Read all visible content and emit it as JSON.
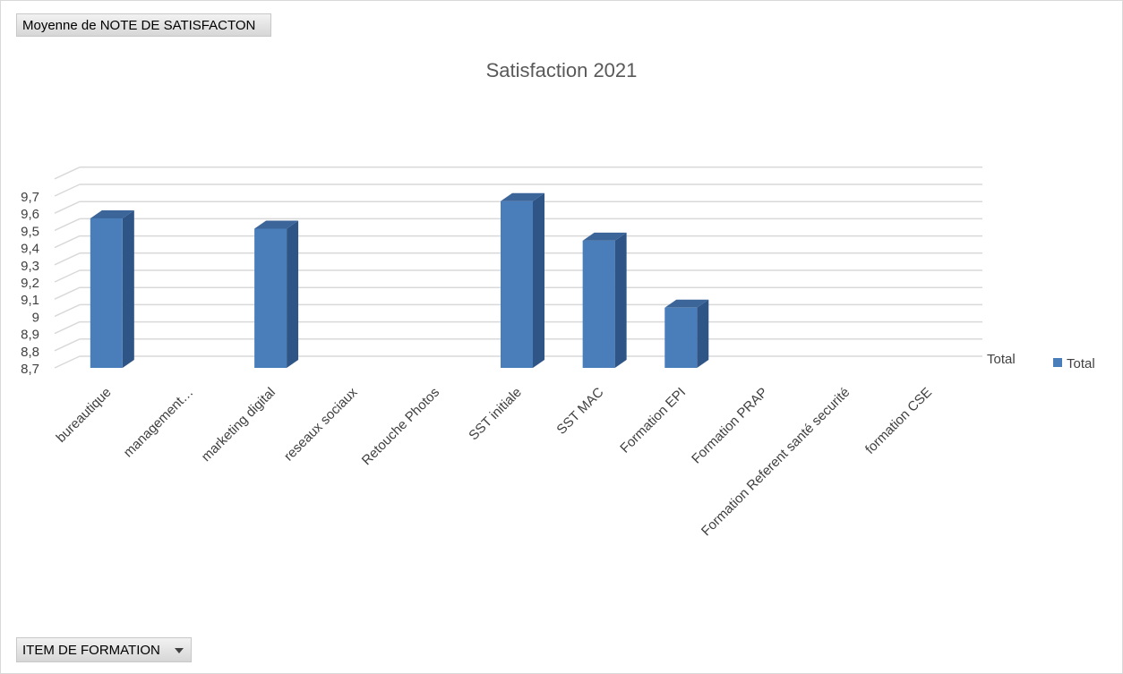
{
  "pivot": {
    "value_field_label": "Moyenne de NOTE DE SATISFACTON",
    "axis_field_label": "ITEM DE FORMATION"
  },
  "chart_data": {
    "type": "bar",
    "title": "Satisfaction 2021",
    "categories": [
      "bureautique",
      "management…",
      "marketing digital",
      "reseaux sociaux",
      "Retouche  Photos",
      "SST initiale",
      "SST MAC",
      "Formation EPI",
      "Formation PRAP",
      "Formation Referent santé securité",
      "formation CSE"
    ],
    "series": [
      {
        "name": "Total",
        "values": [
          9.57,
          null,
          9.51,
          null,
          null,
          9.67,
          9.44,
          9.05,
          null,
          null,
          null
        ]
      }
    ],
    "y_tick_labels": [
      "8,7",
      "8,8",
      "8,9",
      "9",
      "9,1",
      "9,2",
      "9,3",
      "9,4",
      "9,5",
      "9,6",
      "9,7"
    ],
    "ylim": [
      8.7,
      9.8
    ],
    "depth_axis_label": "Total",
    "legend": {
      "position": "right",
      "entries": [
        "Total"
      ]
    },
    "grid": true,
    "colors": {
      "bar_front": "#4a7ebb",
      "bar_side": "#2f5486",
      "bar_top": "#3c6699",
      "grid": "#d9d9d9",
      "axis_text": "#404040",
      "title": "#595959"
    }
  }
}
